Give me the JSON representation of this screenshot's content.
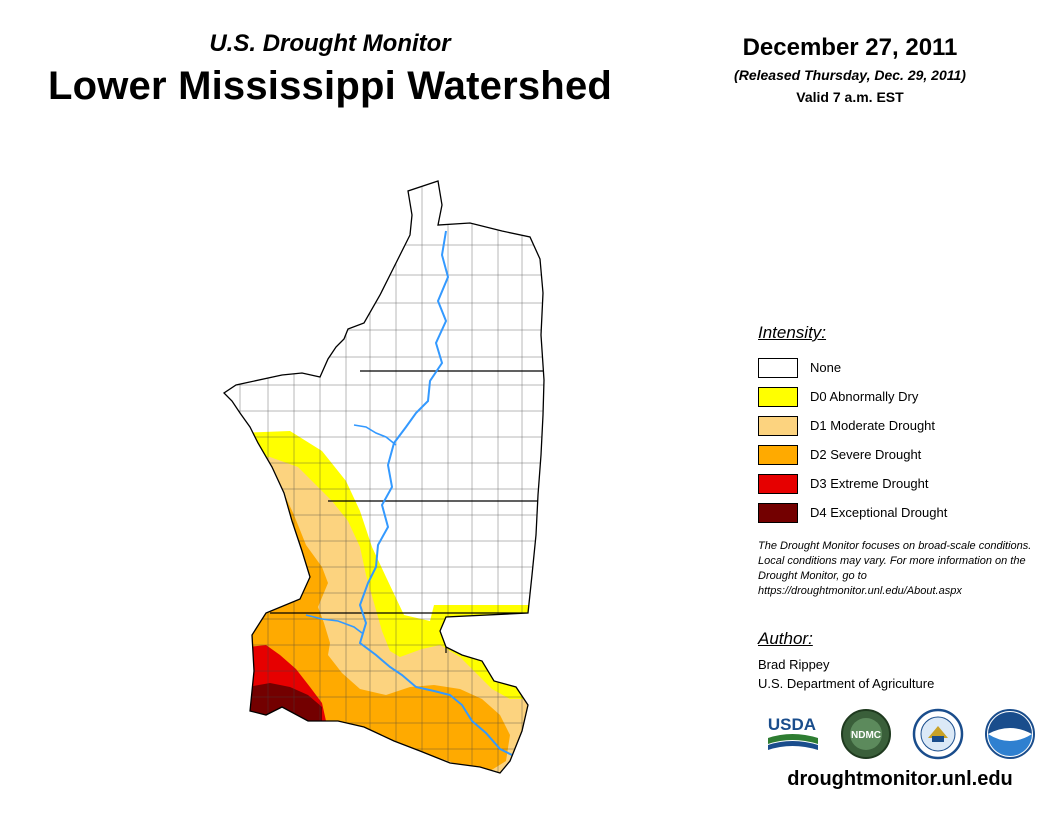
{
  "header": {
    "subtitle": "U.S. Drought Monitor",
    "title": "Lower Mississippi Watershed",
    "date": "December 27, 2011",
    "released": "(Released Thursday, Dec. 29, 2011)",
    "valid": "Valid 7 a.m. EST"
  },
  "legend": {
    "title": "Intensity:",
    "items": [
      {
        "label": "None",
        "color": "#ffffff"
      },
      {
        "label": "D0 Abnormally Dry",
        "color": "#ffff00"
      },
      {
        "label": "D1 Moderate Drought",
        "color": "#fcd37f"
      },
      {
        "label": "D2 Severe Drought",
        "color": "#ffaa00"
      },
      {
        "label": "D3 Extreme Drought",
        "color": "#e60000"
      },
      {
        "label": "D4 Exceptional Drought",
        "color": "#730000"
      }
    ]
  },
  "note": "The Drought Monitor focuses on broad-scale conditions. Local conditions may vary. For more information on the Drought Monitor, go to https://droughtmonitor.unl.edu/About.aspx",
  "author": {
    "heading": "Author:",
    "name": "Brad Rippey",
    "org": "U.S. Department of Agriculture"
  },
  "logos": {
    "usda": "USDA",
    "ndmc": "NDMC",
    "noaa": "NOAA"
  },
  "footer": {
    "url": "droughtmonitor.unl.edu"
  },
  "colors": {
    "river": "#3399ff",
    "county_line": "#404040"
  }
}
